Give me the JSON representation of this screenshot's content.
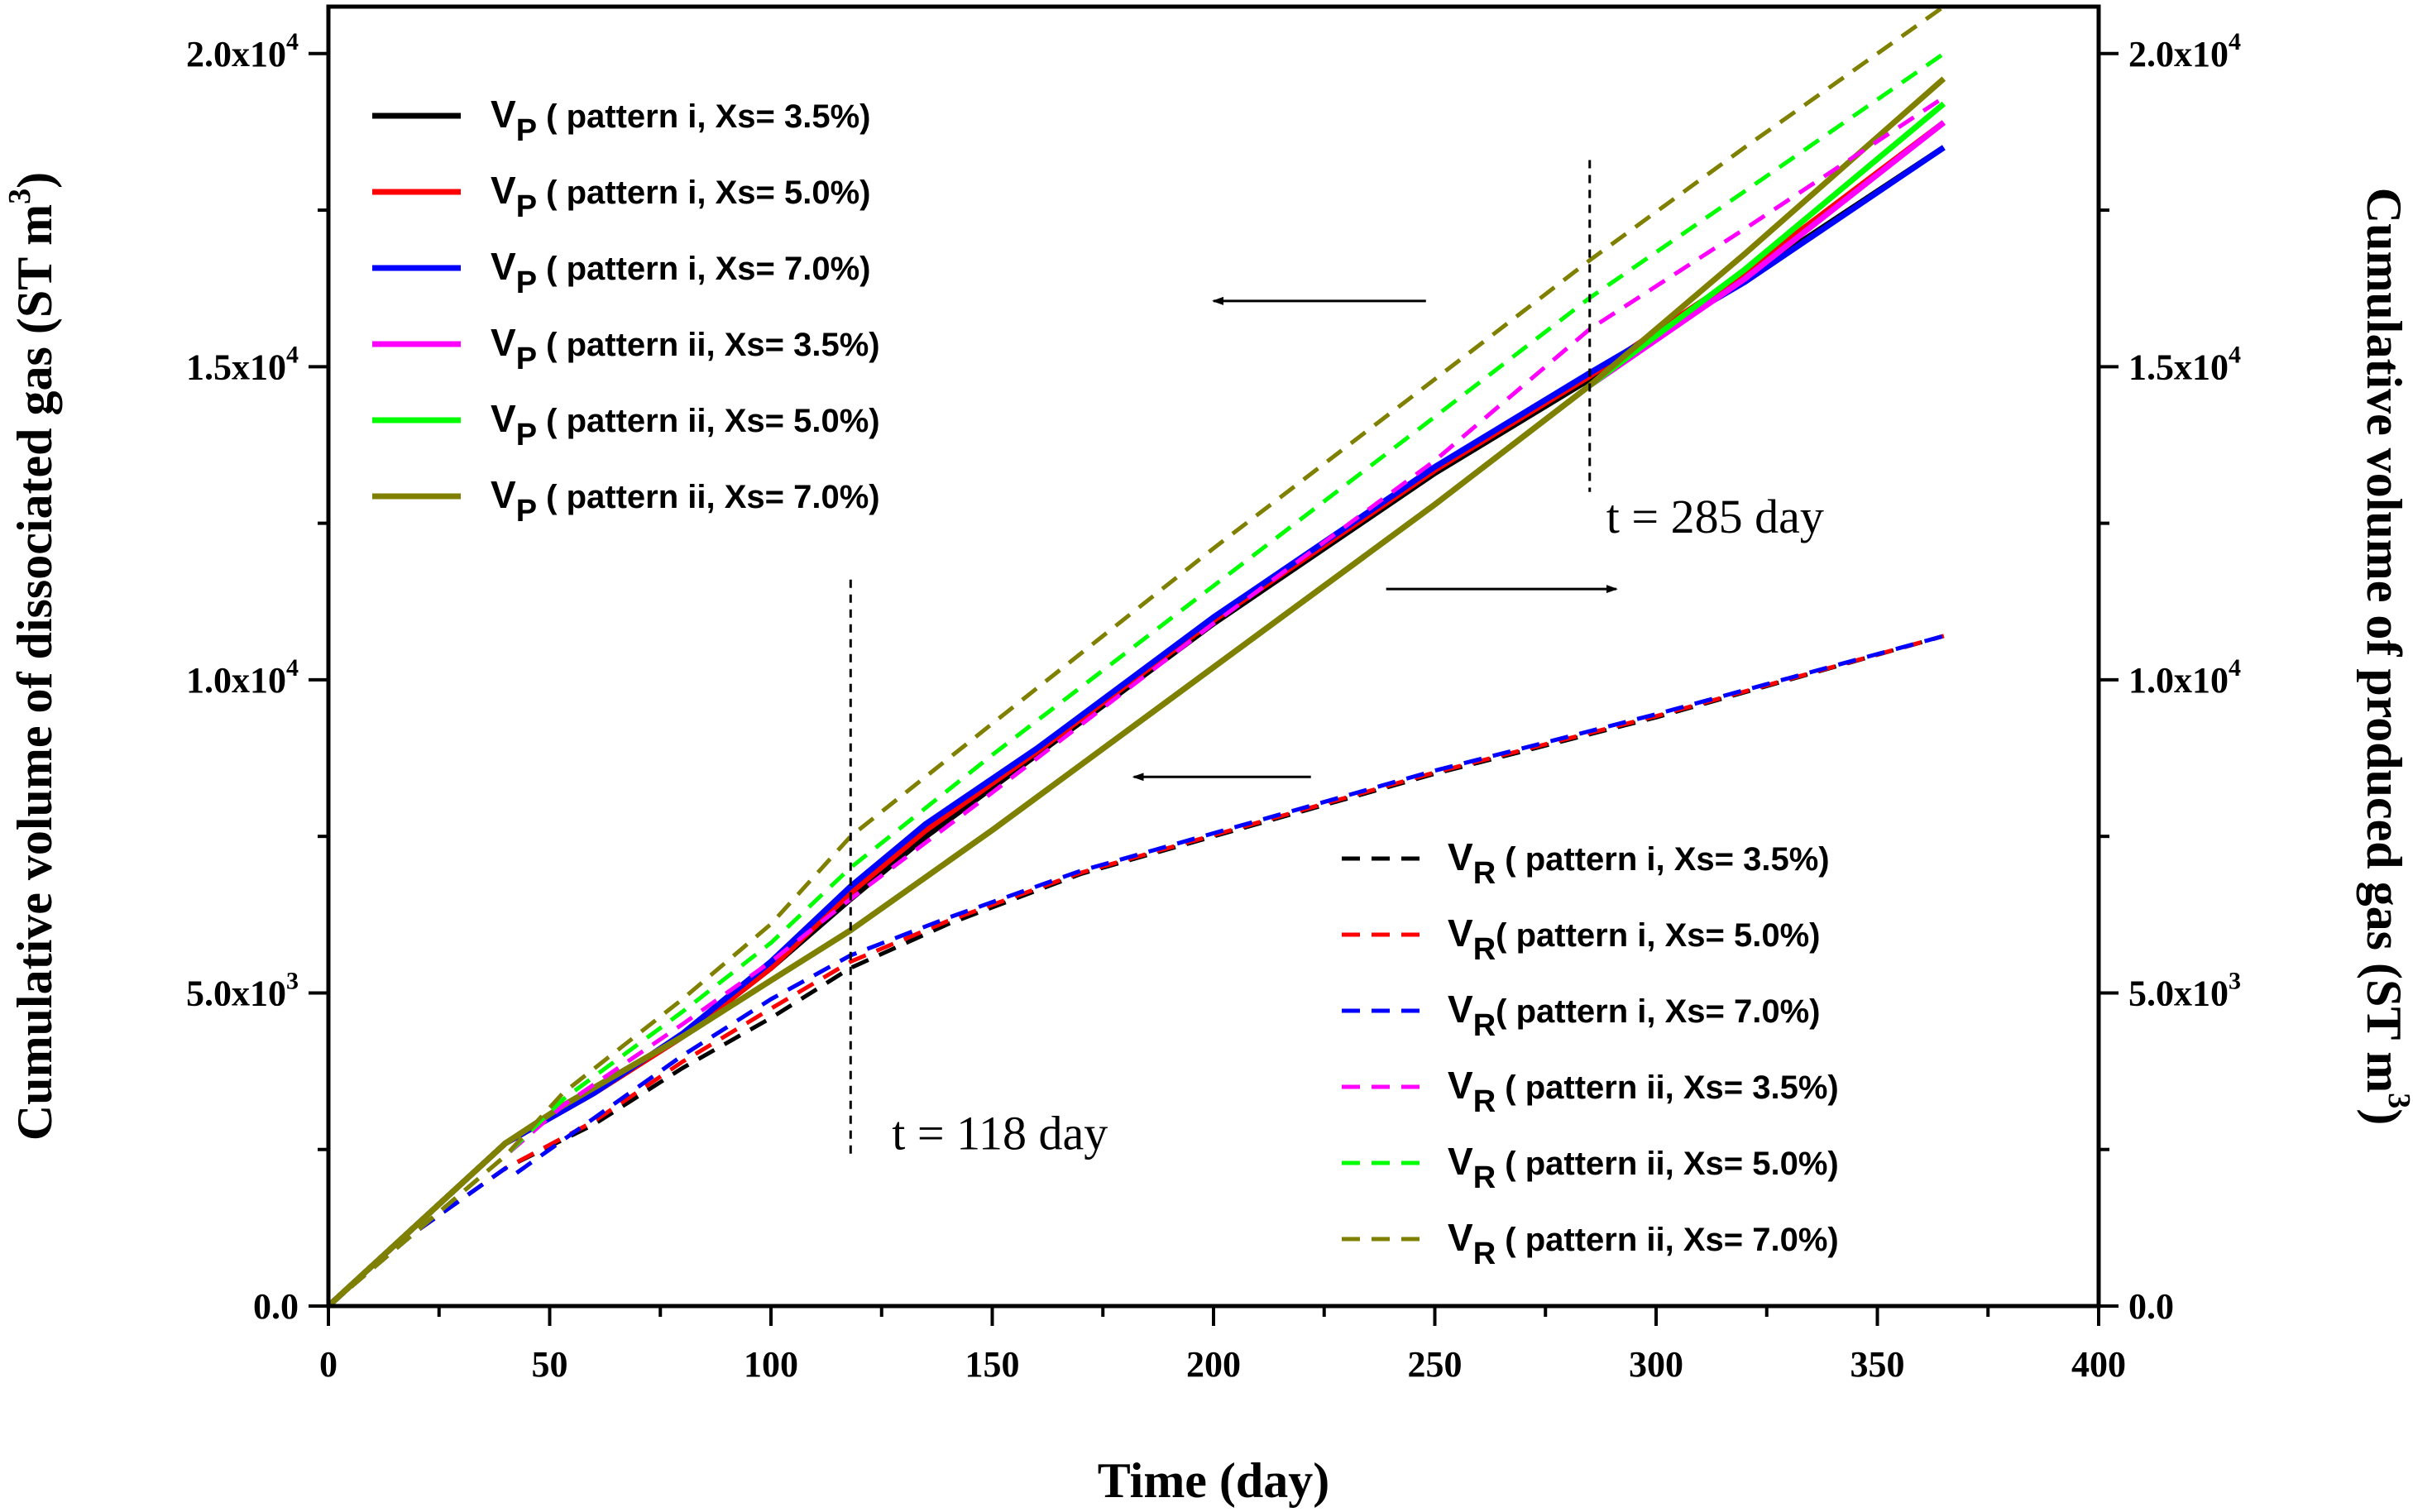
{
  "chart_data": {
    "type": "line",
    "xlabel": "Time (day)",
    "ylabel_left": "Cumulative volume of dissociated gas (ST m",
    "ylabel_left_sup": "3",
    "ylabel_left_end": ")",
    "ylabel_right": "Cumulative volume of produced gas (ST m",
    "ylabel_right_sup": "3",
    "ylabel_right_end": ")",
    "xlim": [
      0,
      400
    ],
    "ylim": [
      0,
      20750
    ],
    "x_ticks": [
      {
        "value": 0,
        "label": "0"
      },
      {
        "value": 50,
        "label": "50"
      },
      {
        "value": 100,
        "label": "100"
      },
      {
        "value": 150,
        "label": "150"
      },
      {
        "value": 200,
        "label": "200"
      },
      {
        "value": 250,
        "label": "250"
      },
      {
        "value": 300,
        "label": "300"
      },
      {
        "value": 350,
        "label": "350"
      },
      {
        "value": 400,
        "label": "400"
      }
    ],
    "y_ticks": [
      {
        "value": 0,
        "label": "0.0",
        "sup": ""
      },
      {
        "value": 5000,
        "label": "5.0x10",
        "sup": "3"
      },
      {
        "value": 10000,
        "label": "1.0x10",
        "sup": "4"
      },
      {
        "value": 15000,
        "label": "1.5x10",
        "sup": "4"
      },
      {
        "value": 20000,
        "label": "2.0x10",
        "sup": "4"
      }
    ],
    "series": [
      {
        "name": "VP ( pattern i, Xs= 3.5%)",
        "sym": "V",
        "sub": "P",
        "label": " ( pattern i, Xs= 3.5%)",
        "color": "#000000",
        "dash": "solid",
        "axis": "left",
        "x": [
          0,
          20,
          40,
          60,
          80,
          100,
          118,
          135,
          160,
          200,
          250,
          285,
          320,
          365
        ],
        "y": [
          0,
          1300,
          2600,
          3400,
          4300,
          5400,
          6500,
          7500,
          8800,
          10900,
          13300,
          14800,
          16400,
          18500
        ]
      },
      {
        "name": "VP ( pattern i, Xs= 5.0%)",
        "sym": "V",
        "sub": "P",
        "label": " ( pattern i, Xs= 5.0%)",
        "color": "#ff0000",
        "dash": "solid",
        "axis": "left",
        "x": [
          0,
          20,
          40,
          60,
          80,
          100,
          118,
          135,
          160,
          200,
          250,
          285,
          320,
          365
        ],
        "y": [
          0,
          1300,
          2600,
          3400,
          4300,
          5400,
          6600,
          7600,
          8850,
          10950,
          13350,
          14850,
          16500,
          18900
        ]
      },
      {
        "name": "VP ( pattern i, Xs= 7.0%)",
        "sym": "V",
        "sub": "P",
        "label": " ( pattern i, Xs= 7.0%)",
        "color": "#0000ff",
        "dash": "solid",
        "axis": "left",
        "x": [
          0,
          20,
          40,
          60,
          80,
          100,
          118,
          135,
          160,
          200,
          250,
          285,
          320,
          365
        ],
        "y": [
          0,
          1300,
          2600,
          3400,
          4350,
          5500,
          6700,
          7700,
          8900,
          11000,
          13400,
          14900,
          16350,
          18500
        ]
      },
      {
        "name": "VP ( pattern ii, Xs= 3.5%)",
        "sym": "V",
        "sub": "P",
        "label": " ( pattern ii, Xs= 3.5%)",
        "color": "#ff00ff",
        "dash": "solid",
        "axis": "left",
        "x": [
          0,
          20,
          40,
          53,
          80,
          100,
          118,
          150,
          200,
          250,
          285,
          320,
          365
        ],
        "y": [
          0,
          1300,
          2600,
          3200,
          4300,
          5200,
          6000,
          7600,
          10200,
          12800,
          14700,
          16400,
          18900
        ]
      },
      {
        "name": "VP ( pattern ii, Xs= 5.0%)",
        "sym": "V",
        "sub": "P",
        "label": " ( pattern ii, Xs= 5.0%)",
        "color": "#00ff00",
        "dash": "solid",
        "axis": "left",
        "x": [
          0,
          20,
          40,
          53,
          80,
          100,
          118,
          150,
          200,
          250,
          285,
          320,
          365
        ],
        "y": [
          0,
          1300,
          2600,
          3200,
          4300,
          5200,
          6000,
          7600,
          10200,
          12800,
          14700,
          16550,
          19200
        ]
      },
      {
        "name": "VP ( pattern ii, Xs= 7.0%)",
        "sym": "V",
        "sub": "P",
        "label": " ( pattern ii, Xs= 7.0%)",
        "color": "#808000",
        "dash": "solid",
        "axis": "left",
        "x": [
          0,
          20,
          40,
          53,
          80,
          100,
          118,
          150,
          200,
          250,
          285,
          320,
          365
        ],
        "y": [
          0,
          1300,
          2600,
          3200,
          4300,
          5200,
          6000,
          7600,
          10200,
          12800,
          14700,
          16800,
          19600
        ]
      },
      {
        "name": "VR ( pattern i, Xs= 3.5%)",
        "sym": "V",
        "sub": "R",
        "label": " ( pattern i, Xs= 3.5%)",
        "color": "#000000",
        "dash": "dashed",
        "axis": "right",
        "x": [
          0,
          20,
          40,
          60,
          80,
          100,
          118,
          140,
          170,
          200,
          250,
          300,
          365
        ],
        "y": [
          0,
          1200,
          2200,
          2900,
          3800,
          4600,
          5400,
          6100,
          6900,
          7500,
          8500,
          9400,
          10700
        ]
      },
      {
        "name": "VR( pattern i, Xs= 5.0%)",
        "sym": "V",
        "sub": "R",
        "label": "( pattern i, Xs= 5.0%)",
        "color": "#ff0000",
        "dash": "dashed",
        "axis": "right",
        "x": [
          0,
          20,
          40,
          60,
          80,
          100,
          118,
          140,
          170,
          200,
          250,
          300,
          365
        ],
        "y": [
          0,
          1200,
          2200,
          2950,
          3900,
          4750,
          5500,
          6150,
          6920,
          7520,
          8520,
          9420,
          10700
        ]
      },
      {
        "name": "VR( pattern i, Xs= 7.0%)",
        "sym": "V",
        "sub": "R",
        "label": "( pattern i, Xs= 7.0%)",
        "color": "#0000ff",
        "dash": "dashed",
        "axis": "right",
        "x": [
          0,
          20,
          40,
          42,
          60,
          80,
          100,
          118,
          140,
          170,
          200,
          250,
          300,
          365
        ],
        "y": [
          0,
          1200,
          2200,
          2100,
          3000,
          4000,
          4900,
          5600,
          6200,
          6950,
          7550,
          8550,
          9450,
          10700
        ]
      },
      {
        "name": "VR ( pattern ii, Xs= 3.5%)",
        "sym": "V",
        "sub": "R",
        "label": " ( pattern ii, Xs= 3.5%)",
        "color": "#ff00ff",
        "dash": "dashed",
        "axis": "right",
        "x": [
          0,
          20,
          40,
          53,
          80,
          100,
          118,
          150,
          200,
          250,
          285,
          320,
          365
        ],
        "y": [
          0,
          1200,
          2400,
          3200,
          4500,
          5500,
          6500,
          8200,
          10900,
          13500,
          15600,
          17200,
          19300
        ]
      },
      {
        "name": "VR ( pattern ii, Xs= 5.0%)",
        "sym": "V",
        "sub": "R",
        "label": " ( pattern ii, Xs= 5.0%)",
        "color": "#00ff00",
        "dash": "dashed",
        "axis": "right",
        "x": [
          0,
          20,
          40,
          53,
          80,
          100,
          118,
          150,
          200,
          250,
          285,
          320,
          365
        ],
        "y": [
          0,
          1200,
          2400,
          3300,
          4700,
          5800,
          7000,
          8800,
          11500,
          14200,
          16100,
          17800,
          20000
        ]
      },
      {
        "name": "VR ( pattern ii, Xs= 7.0%)",
        "sym": "V",
        "sub": "R",
        "label": " ( pattern ii, Xs= 7.0%)",
        "color": "#808000",
        "dash": "dashed",
        "axis": "right",
        "x": [
          0,
          20,
          40,
          53,
          80,
          100,
          118,
          150,
          200,
          250,
          285,
          320,
          365
        ],
        "y": [
          0,
          1200,
          2400,
          3400,
          4900,
          6100,
          7500,
          9300,
          12100,
          14800,
          16700,
          18500,
          20750
        ]
      }
    ],
    "annotations": [
      {
        "text": "t = 285 day",
        "x": 285
      },
      {
        "text": "t = 118 day",
        "x": 118
      }
    ],
    "vlines": [
      {
        "x": 285,
        "y_from": 13000,
        "y_to": 18300
      },
      {
        "x": 118,
        "y_from": 2400,
        "y_to": 11600
      }
    ],
    "arrows": [
      {
        "direction": "left",
        "x_from": 248,
        "x_to": 200,
        "y": 16050
      },
      {
        "direction": "right",
        "x_from": 239,
        "x_to": 291,
        "y": 11450
      },
      {
        "direction": "left",
        "x_from": 222,
        "x_to": 182,
        "y": 8450
      }
    ],
    "legend": [
      {
        "position": "top-left",
        "series": [
          0,
          1,
          2,
          3,
          4,
          5
        ]
      },
      {
        "position": "bottom-right",
        "series": [
          6,
          7,
          8,
          9,
          10,
          11
        ]
      }
    ]
  }
}
